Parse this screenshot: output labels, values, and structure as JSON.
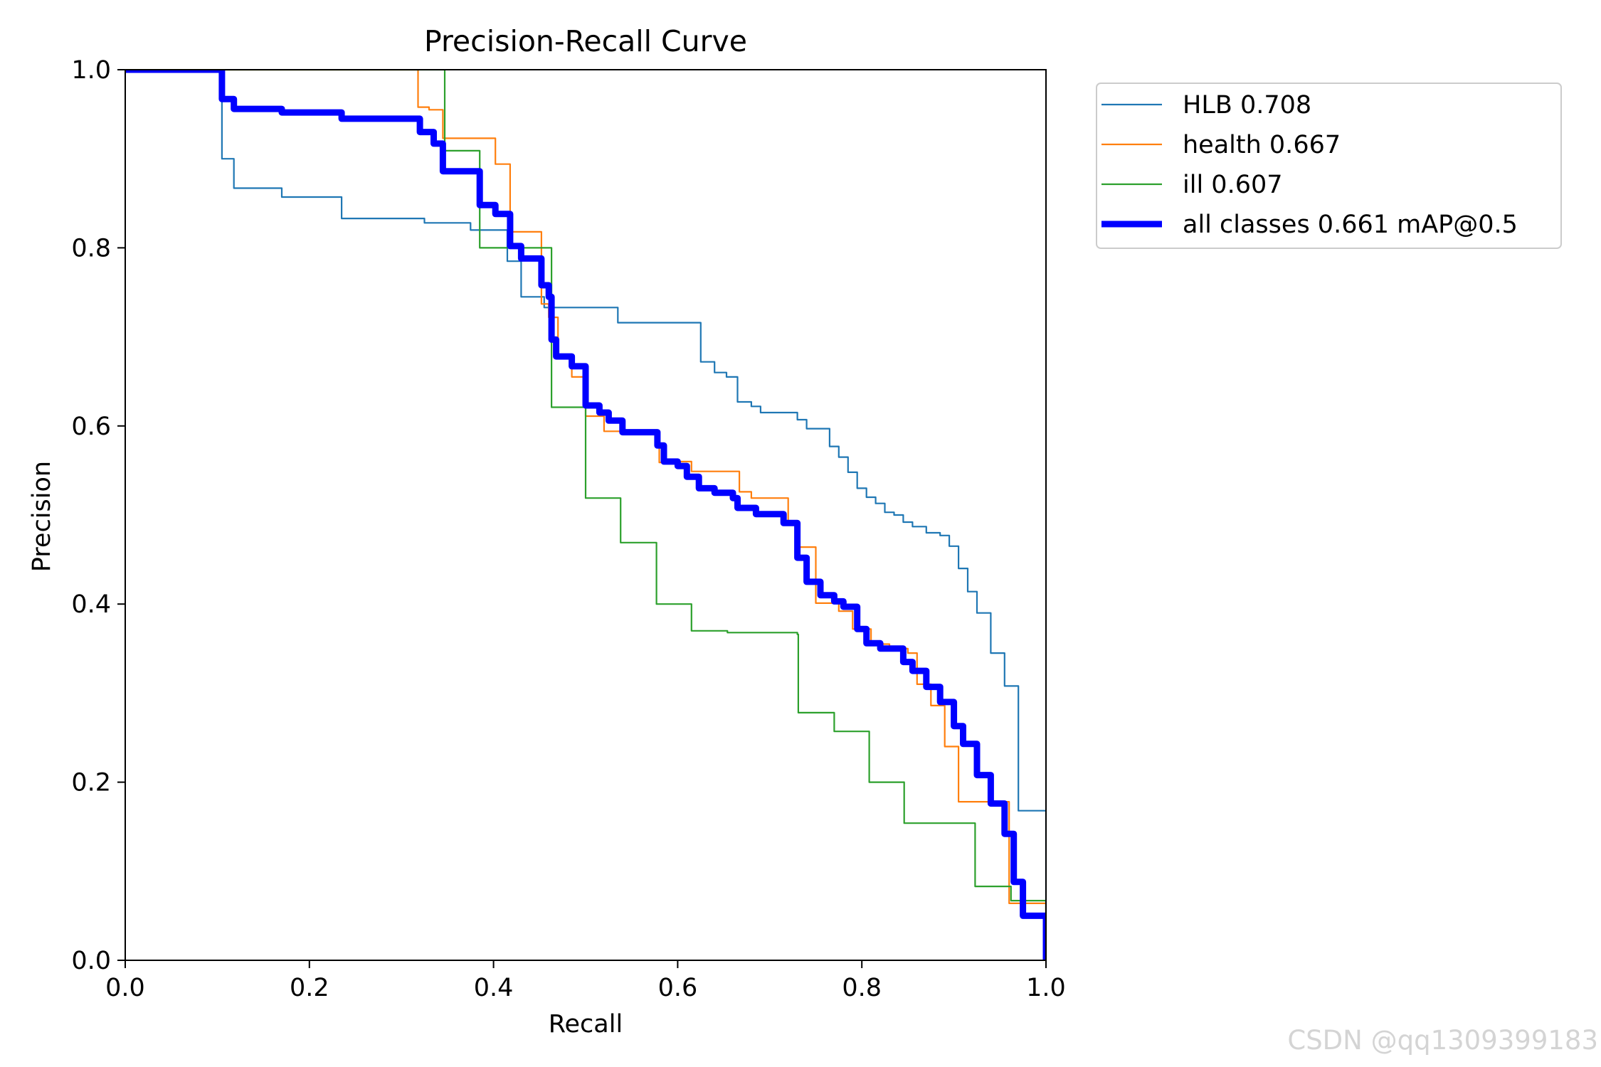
{
  "chart_data": {
    "type": "line",
    "title": "Precision-Recall Curve",
    "xlabel": "Recall",
    "ylabel": "Precision",
    "xlim": [
      0,
      1
    ],
    "ylim": [
      0,
      1
    ],
    "xticks": [
      "0.0",
      "0.2",
      "0.4",
      "0.6",
      "0.8",
      "1.0"
    ],
    "yticks": [
      "0.0",
      "0.2",
      "0.4",
      "0.6",
      "0.8",
      "1.0"
    ],
    "grid": false,
    "legend_position": "outside-top-right",
    "series": [
      {
        "name": "HLB 0.708",
        "color": "#1f77b4",
        "width": "thin",
        "step": true,
        "points": [
          [
            0,
            1.0
          ],
          [
            0.103,
            1.0
          ],
          [
            0.105,
            0.9
          ],
          [
            0.118,
            0.867
          ],
          [
            0.17,
            0.857
          ],
          [
            0.235,
            0.833
          ],
          [
            0.325,
            0.828
          ],
          [
            0.375,
            0.82
          ],
          [
            0.415,
            0.785
          ],
          [
            0.43,
            0.745
          ],
          [
            0.455,
            0.733
          ],
          [
            0.535,
            0.716
          ],
          [
            0.625,
            0.672
          ],
          [
            0.64,
            0.66
          ],
          [
            0.653,
            0.655
          ],
          [
            0.665,
            0.627
          ],
          [
            0.68,
            0.622
          ],
          [
            0.69,
            0.615
          ],
          [
            0.73,
            0.607
          ],
          [
            0.74,
            0.597
          ],
          [
            0.765,
            0.577
          ],
          [
            0.775,
            0.565
          ],
          [
            0.785,
            0.548
          ],
          [
            0.795,
            0.53
          ],
          [
            0.805,
            0.52
          ],
          [
            0.815,
            0.513
          ],
          [
            0.825,
            0.503
          ],
          [
            0.835,
            0.5
          ],
          [
            0.845,
            0.492
          ],
          [
            0.855,
            0.487
          ],
          [
            0.87,
            0.48
          ],
          [
            0.885,
            0.477
          ],
          [
            0.895,
            0.465
          ],
          [
            0.905,
            0.44
          ],
          [
            0.915,
            0.414
          ],
          [
            0.925,
            0.39
          ],
          [
            0.94,
            0.345
          ],
          [
            0.955,
            0.308
          ],
          [
            0.97,
            0.168
          ],
          [
            1.0,
            0.0
          ]
        ]
      },
      {
        "name": "health 0.667",
        "color": "#ff7f0e",
        "width": "thin",
        "step": true,
        "points": [
          [
            0,
            1.0
          ],
          [
            0.316,
            1.0
          ],
          [
            0.318,
            0.958
          ],
          [
            0.33,
            0.955
          ],
          [
            0.345,
            0.923
          ],
          [
            0.402,
            0.894
          ],
          [
            0.418,
            0.818
          ],
          [
            0.452,
            0.737
          ],
          [
            0.46,
            0.722
          ],
          [
            0.47,
            0.677
          ],
          [
            0.485,
            0.655
          ],
          [
            0.5,
            0.611
          ],
          [
            0.52,
            0.594
          ],
          [
            0.58,
            0.559
          ],
          [
            0.6,
            0.56
          ],
          [
            0.615,
            0.549
          ],
          [
            0.667,
            0.526
          ],
          [
            0.68,
            0.519
          ],
          [
            0.72,
            0.49
          ],
          [
            0.73,
            0.464
          ],
          [
            0.75,
            0.401
          ],
          [
            0.775,
            0.392
          ],
          [
            0.79,
            0.372
          ],
          [
            0.81,
            0.355
          ],
          [
            0.83,
            0.35
          ],
          [
            0.85,
            0.345
          ],
          [
            0.86,
            0.31
          ],
          [
            0.875,
            0.286
          ],
          [
            0.89,
            0.24
          ],
          [
            0.905,
            0.178
          ],
          [
            0.96,
            0.064
          ],
          [
            1.0,
            0.0
          ]
        ]
      },
      {
        "name": "ill 0.607",
        "color": "#2ca02c",
        "width": "thin",
        "step": true,
        "points": [
          [
            0,
            1.0
          ],
          [
            0.345,
            1.0
          ],
          [
            0.347,
            0.909
          ],
          [
            0.385,
            0.8
          ],
          [
            0.463,
            0.621
          ],
          [
            0.5,
            0.519
          ],
          [
            0.538,
            0.469
          ],
          [
            0.577,
            0.4
          ],
          [
            0.615,
            0.37
          ],
          [
            0.654,
            0.368
          ],
          [
            0.73,
            0.366
          ],
          [
            0.731,
            0.278
          ],
          [
            0.77,
            0.257
          ],
          [
            0.808,
            0.2
          ],
          [
            0.846,
            0.154
          ],
          [
            0.923,
            0.083
          ],
          [
            0.962,
            0.067
          ],
          [
            1.0,
            0.0
          ]
        ]
      },
      {
        "name": "all classes 0.661 mAP@0.5",
        "color": "#0000ff",
        "width": "thick",
        "step": true,
        "points": [
          [
            0,
            1.0
          ],
          [
            0.103,
            1.0
          ],
          [
            0.105,
            0.967
          ],
          [
            0.118,
            0.956
          ],
          [
            0.17,
            0.952
          ],
          [
            0.235,
            0.945
          ],
          [
            0.32,
            0.93
          ],
          [
            0.335,
            0.917
          ],
          [
            0.345,
            0.886
          ],
          [
            0.385,
            0.848
          ],
          [
            0.402,
            0.838
          ],
          [
            0.418,
            0.802
          ],
          [
            0.43,
            0.788
          ],
          [
            0.452,
            0.758
          ],
          [
            0.46,
            0.745
          ],
          [
            0.463,
            0.697
          ],
          [
            0.468,
            0.678
          ],
          [
            0.485,
            0.667
          ],
          [
            0.5,
            0.623
          ],
          [
            0.515,
            0.615
          ],
          [
            0.525,
            0.606
          ],
          [
            0.54,
            0.593
          ],
          [
            0.578,
            0.578
          ],
          [
            0.585,
            0.56
          ],
          [
            0.6,
            0.555
          ],
          [
            0.61,
            0.543
          ],
          [
            0.623,
            0.53
          ],
          [
            0.64,
            0.525
          ],
          [
            0.66,
            0.519
          ],
          [
            0.665,
            0.508
          ],
          [
            0.685,
            0.501
          ],
          [
            0.715,
            0.491
          ],
          [
            0.73,
            0.452
          ],
          [
            0.74,
            0.425
          ],
          [
            0.755,
            0.41
          ],
          [
            0.77,
            0.403
          ],
          [
            0.78,
            0.397
          ],
          [
            0.795,
            0.372
          ],
          [
            0.805,
            0.356
          ],
          [
            0.82,
            0.35
          ],
          [
            0.845,
            0.335
          ],
          [
            0.855,
            0.325
          ],
          [
            0.87,
            0.307
          ],
          [
            0.885,
            0.29
          ],
          [
            0.9,
            0.263
          ],
          [
            0.91,
            0.243
          ],
          [
            0.925,
            0.208
          ],
          [
            0.94,
            0.176
          ],
          [
            0.955,
            0.142
          ],
          [
            0.965,
            0.088
          ],
          [
            0.975,
            0.05
          ],
          [
            1.0,
            0.0
          ]
        ]
      }
    ]
  },
  "watermark": "CSDN @qq1309399183"
}
